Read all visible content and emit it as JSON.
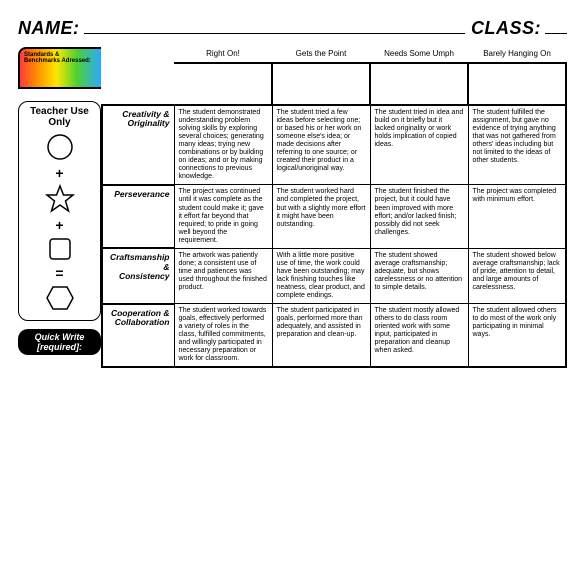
{
  "header": {
    "name_label": "NAME:",
    "class_label": "CLASS:"
  },
  "standards_label": "Standards & Benchmarks Adressed:",
  "columns": [
    "Right On!",
    "Gets the Point",
    "Needs Some Umph",
    "Barely Hanging On"
  ],
  "rows": [
    {
      "label": "Creativity & Originality",
      "cells": [
        "The student demonstrated understanding problem solving skills by exploring several choices; generating many ideas; trying new combinations or by building on ideas; and or by making connections to previous knowledge.",
        "The student tried a few ideas before selecting one; or based his or her work on someone else's idea; or made decisions after referring to one source; or created their product in a logical/unoriginal way.",
        "The student tried in idea and build on it briefly but it lacked originality or work holds implication of copied ideas.",
        "The student fulfilled the assignment, but gave no evidence of trying anything that was not gathered from others' ideas including but not limited to the ideas of other students."
      ]
    },
    {
      "label": "Perseverance",
      "cells": [
        "The project was continued until it was complete as the student could make it; gave it effort far beyond that required; to pride in going well beyond the requirement.",
        "The student worked hard and completed the project, but with a slightly more effort it might have been outstanding.",
        "The student finished the project, but it could have been improved with more effort; and/or lacked finish; possibly did not seek challenges.",
        "The project was completed with minimum effort."
      ]
    },
    {
      "label": "Craftsmanship & Consistency",
      "cells": [
        "The artwork was patiently done; a consistent use of time and patiences was used throughout the finished product.",
        "With a little more positive use of time, the work could have been outstanding; may lack finishing touches like neatness, clear product, and complete endings.",
        "The student showed average craftsmanship; adequate, but shows carelessness or no attention to simple details.",
        "The student showed below average craftsmanship; lack of pride, attention to detail, and large amounts of carelessness."
      ]
    },
    {
      "label": "Cooperation & Collaboration",
      "cells": [
        "The student worked towards goals, effectively performed a variety of roles in the class, fulfilled commitments, and willingly participated in necessary preparation or work for classroom.",
        "The student participated in goals, performed more than adequately, and assisted in preparation and clean-up.",
        "The student mostly allowed others to do class room oriented work with some input, participated in preparation and cleanup when asked.",
        "The student allowed others to do most of the work only participating in minimal ways."
      ]
    }
  ],
  "teacher": {
    "title": "Teacher Use Only",
    "shapes": [
      "circle",
      "star",
      "square",
      "hexagon"
    ]
  },
  "quickwrite": "Quick Write [required]:"
}
